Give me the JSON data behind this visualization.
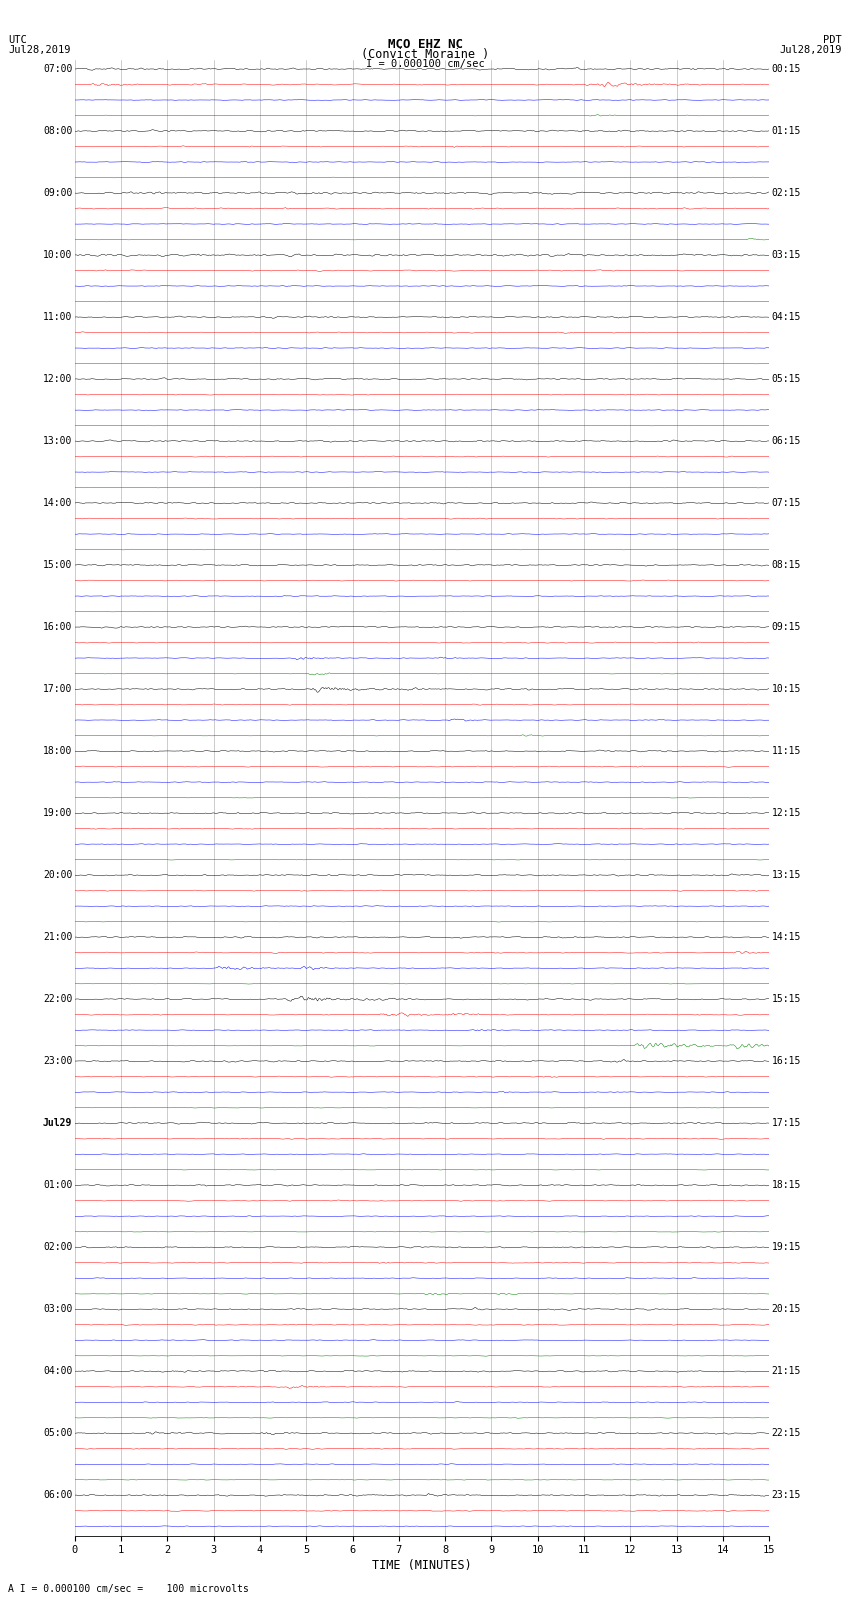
{
  "title_line1": "MCO EHZ NC",
  "title_line2": "(Convict Moraine )",
  "scale_text": "I = 0.000100 cm/sec",
  "label_left_line1": "UTC",
  "label_left_line2": "Jul28,2019",
  "label_right_line1": "PDT",
  "label_right_line2": "Jul28,2019",
  "xlabel": "TIME (MINUTES)",
  "footer": "A I = 0.000100 cm/sec =    100 microvolts",
  "trace_color_cycle": [
    "black",
    "red",
    "blue",
    "green"
  ],
  "utc_labels": [
    "07:00",
    "",
    "",
    "",
    "08:00",
    "",
    "",
    "",
    "09:00",
    "",
    "",
    "",
    "10:00",
    "",
    "",
    "",
    "11:00",
    "",
    "",
    "",
    "12:00",
    "",
    "",
    "",
    "13:00",
    "",
    "",
    "",
    "14:00",
    "",
    "",
    "",
    "15:00",
    "",
    "",
    "",
    "16:00",
    "",
    "",
    "",
    "17:00",
    "",
    "",
    "",
    "18:00",
    "",
    "",
    "",
    "19:00",
    "",
    "",
    "",
    "20:00",
    "",
    "",
    "",
    "21:00",
    "",
    "",
    "",
    "22:00",
    "",
    "",
    "",
    "23:00",
    "",
    "",
    "",
    "Jul29",
    "",
    "",
    "",
    "01:00",
    "",
    "",
    "",
    "02:00",
    "",
    "",
    "",
    "03:00",
    "",
    "",
    "",
    "04:00",
    "",
    "",
    "",
    "05:00",
    "",
    "",
    "",
    "06:00",
    "",
    ""
  ],
  "pdt_labels": [
    "00:15",
    "",
    "",
    "",
    "01:15",
    "",
    "",
    "",
    "02:15",
    "",
    "",
    "",
    "03:15",
    "",
    "",
    "",
    "04:15",
    "",
    "",
    "",
    "05:15",
    "",
    "",
    "",
    "06:15",
    "",
    "",
    "",
    "07:15",
    "",
    "",
    "",
    "08:15",
    "",
    "",
    "",
    "09:15",
    "",
    "",
    "",
    "10:15",
    "",
    "",
    "",
    "11:15",
    "",
    "",
    "",
    "12:15",
    "",
    "",
    "",
    "13:15",
    "",
    "",
    "",
    "14:15",
    "",
    "",
    "",
    "15:15",
    "",
    "",
    "",
    "16:15",
    "",
    "",
    "",
    "17:15",
    "",
    "",
    "",
    "18:15",
    "",
    "",
    "",
    "19:15",
    "",
    "",
    "",
    "20:15",
    "",
    "",
    "",
    "21:15",
    "",
    "",
    "",
    "22:15",
    "",
    "",
    "",
    "23:15",
    "",
    ""
  ],
  "x_ticks": [
    0,
    1,
    2,
    3,
    4,
    5,
    6,
    7,
    8,
    9,
    10,
    11,
    12,
    13,
    14,
    15
  ],
  "xlim": [
    0,
    15
  ],
  "n_rows": 95,
  "n_minutes": 15,
  "fig_width": 8.5,
  "fig_height": 16.13,
  "bg_color": "white",
  "noise_base": 0.018,
  "noise_vary": [
    0.025,
    0.015,
    0.01,
    0.008,
    0.022,
    0.012,
    0.01,
    0.008,
    0.028,
    0.015,
    0.01,
    0.008,
    0.03,
    0.015,
    0.01,
    0.008,
    0.02,
    0.012,
    0.01,
    0.008,
    0.02,
    0.012,
    0.01,
    0.008,
    0.02,
    0.012,
    0.01,
    0.008,
    0.02,
    0.012,
    0.01,
    0.008,
    0.02,
    0.012,
    0.01,
    0.008,
    0.02,
    0.012,
    0.01,
    0.008,
    0.02,
    0.012,
    0.01,
    0.008,
    0.02,
    0.012,
    0.01,
    0.008,
    0.02,
    0.012,
    0.01,
    0.008,
    0.02,
    0.012,
    0.01,
    0.008,
    0.02,
    0.012,
    0.01,
    0.008,
    0.02,
    0.012,
    0.01,
    0.008,
    0.02,
    0.012,
    0.01,
    0.008,
    0.02,
    0.012,
    0.01,
    0.008,
    0.02,
    0.012,
    0.01,
    0.008,
    0.02,
    0.012,
    0.01,
    0.008,
    0.02,
    0.012,
    0.01,
    0.008,
    0.02,
    0.012,
    0.01,
    0.008,
    0.02,
    0.012,
    0.01,
    0.008,
    0.02,
    0.012,
    0.01
  ],
  "events": [
    {
      "row": 0,
      "t": 0.5,
      "amp": 0.15,
      "dur": 0.3,
      "color_hint": "black"
    },
    {
      "row": 1,
      "t": 0.3,
      "amp": 0.25,
      "dur": 0.8,
      "color_hint": "red"
    },
    {
      "row": 1,
      "t": 2.5,
      "amp": 0.15,
      "dur": 0.4,
      "color_hint": "red"
    },
    {
      "row": 1,
      "t": 10.8,
      "amp": 0.35,
      "dur": 1.5,
      "color_hint": "red"
    },
    {
      "row": 2,
      "t": 10.8,
      "amp": 0.12,
      "dur": 0.3,
      "color_hint": "blue"
    },
    {
      "row": 3,
      "t": 11.0,
      "amp": 0.22,
      "dur": 0.5,
      "color_hint": "green"
    },
    {
      "row": 3,
      "t": 13.0,
      "amp": 0.1,
      "dur": 0.4,
      "color_hint": "green"
    },
    {
      "row": 4,
      "t": 14.5,
      "amp": 0.1,
      "dur": 0.3,
      "color_hint": "black"
    },
    {
      "row": 5,
      "t": 3.5,
      "amp": 0.12,
      "dur": 0.4,
      "color_hint": "red"
    },
    {
      "row": 5,
      "t": 8.0,
      "amp": 0.15,
      "dur": 0.5,
      "color_hint": "red"
    },
    {
      "row": 6,
      "t": 3.5,
      "amp": 0.1,
      "dur": 0.3,
      "color_hint": "blue"
    },
    {
      "row": 8,
      "t": 1.5,
      "amp": 0.18,
      "dur": 0.5,
      "color_hint": "black"
    },
    {
      "row": 8,
      "t": 4.8,
      "amp": 0.22,
      "dur": 0.5,
      "color_hint": "black"
    },
    {
      "row": 9,
      "t": 4.5,
      "amp": 0.1,
      "dur": 0.3,
      "color_hint": "red"
    },
    {
      "row": 10,
      "t": 4.3,
      "amp": 0.12,
      "dur": 0.3,
      "color_hint": "blue"
    },
    {
      "row": 11,
      "t": 14.5,
      "amp": 0.18,
      "dur": 0.4,
      "color_hint": "green"
    },
    {
      "row": 12,
      "t": 2.5,
      "amp": 0.15,
      "dur": 0.4,
      "color_hint": "black"
    },
    {
      "row": 13,
      "t": 4.0,
      "amp": 0.1,
      "dur": 0.3,
      "color_hint": "red"
    },
    {
      "row": 14,
      "t": 4.5,
      "amp": 0.1,
      "dur": 0.2,
      "color_hint": "blue"
    },
    {
      "row": 16,
      "t": 5.0,
      "amp": 0.15,
      "dur": 0.5,
      "color_hint": "black"
    },
    {
      "row": 16,
      "t": 9.2,
      "amp": 0.12,
      "dur": 0.3,
      "color_hint": "black"
    },
    {
      "row": 17,
      "t": 10.5,
      "amp": 0.1,
      "dur": 0.4,
      "color_hint": "red"
    },
    {
      "row": 18,
      "t": 4.0,
      "amp": 0.1,
      "dur": 0.3,
      "color_hint": "blue"
    },
    {
      "row": 20,
      "t": 1.8,
      "amp": 0.1,
      "dur": 0.4,
      "color_hint": "black"
    },
    {
      "row": 20,
      "t": 3.5,
      "amp": 0.12,
      "dur": 0.3,
      "color_hint": "black"
    },
    {
      "row": 24,
      "t": 1.5,
      "amp": 0.12,
      "dur": 0.4,
      "color_hint": "black"
    },
    {
      "row": 24,
      "t": 3.0,
      "amp": 0.1,
      "dur": 0.3,
      "color_hint": "black"
    },
    {
      "row": 24,
      "t": 12.7,
      "amp": 0.1,
      "dur": 0.3,
      "color_hint": "black"
    },
    {
      "row": 25,
      "t": 13.5,
      "amp": 0.1,
      "dur": 0.3,
      "color_hint": "red"
    },
    {
      "row": 28,
      "t": 1.5,
      "amp": 0.12,
      "dur": 0.4,
      "color_hint": "black"
    },
    {
      "row": 28,
      "t": 2.5,
      "amp": 0.1,
      "dur": 0.3,
      "color_hint": "black"
    },
    {
      "row": 29,
      "t": 2.0,
      "amp": 0.1,
      "dur": 0.3,
      "color_hint": "red"
    },
    {
      "row": 32,
      "t": 1.5,
      "amp": 0.12,
      "dur": 0.4,
      "color_hint": "black"
    },
    {
      "row": 32,
      "t": 4.0,
      "amp": 0.1,
      "dur": 0.3,
      "color_hint": "black"
    },
    {
      "row": 34,
      "t": 4.3,
      "amp": 0.1,
      "dur": 0.3,
      "color_hint": "blue"
    },
    {
      "row": 36,
      "t": 0.5,
      "amp": 0.15,
      "dur": 0.4,
      "color_hint": "black"
    },
    {
      "row": 37,
      "t": 13.2,
      "amp": 0.1,
      "dur": 0.3,
      "color_hint": "red"
    },
    {
      "row": 38,
      "t": 4.7,
      "amp": 0.35,
      "dur": 0.6,
      "color_hint": "blue"
    },
    {
      "row": 38,
      "t": 7.8,
      "amp": 0.2,
      "dur": 0.4,
      "color_hint": "blue"
    },
    {
      "row": 39,
      "t": 5.0,
      "amp": 0.2,
      "dur": 0.5,
      "color_hint": "green"
    },
    {
      "row": 40,
      "t": 5.0,
      "amp": 0.55,
      "dur": 1.0,
      "color_hint": "black"
    },
    {
      "row": 40,
      "t": 7.0,
      "amp": 0.25,
      "dur": 0.5,
      "color_hint": "black"
    },
    {
      "row": 41,
      "t": 8.5,
      "amp": 0.15,
      "dur": 0.4,
      "color_hint": "red"
    },
    {
      "row": 42,
      "t": 8.0,
      "amp": 0.25,
      "dur": 0.5,
      "color_hint": "blue"
    },
    {
      "row": 43,
      "t": 9.5,
      "amp": 0.2,
      "dur": 0.5,
      "color_hint": "green"
    },
    {
      "row": 44,
      "t": 11.5,
      "amp": 0.12,
      "dur": 0.3,
      "color_hint": "black"
    },
    {
      "row": 45,
      "t": 12.0,
      "amp": 0.1,
      "dur": 0.3,
      "color_hint": "red"
    },
    {
      "row": 48,
      "t": 14.0,
      "amp": 0.1,
      "dur": 0.3,
      "color_hint": "black"
    },
    {
      "row": 52,
      "t": 9.5,
      "amp": 0.1,
      "dur": 0.3,
      "color_hint": "black"
    },
    {
      "row": 53,
      "t": 14.5,
      "amp": 0.12,
      "dur": 0.3,
      "color_hint": "red"
    },
    {
      "row": 56,
      "t": 3.5,
      "amp": 0.1,
      "dur": 0.3,
      "color_hint": "black"
    },
    {
      "row": 57,
      "t": 14.2,
      "amp": 0.25,
      "dur": 0.5,
      "color_hint": "red"
    },
    {
      "row": 58,
      "t": 3.0,
      "amp": 0.45,
      "dur": 0.8,
      "color_hint": "blue"
    },
    {
      "row": 58,
      "t": 4.8,
      "amp": 0.35,
      "dur": 0.6,
      "color_hint": "blue"
    },
    {
      "row": 60,
      "t": 4.5,
      "amp": 0.55,
      "dur": 1.2,
      "color_hint": "black"
    },
    {
      "row": 60,
      "t": 6.5,
      "amp": 0.3,
      "dur": 0.6,
      "color_hint": "black"
    },
    {
      "row": 61,
      "t": 6.5,
      "amp": 0.45,
      "dur": 0.8,
      "color_hint": "red"
    },
    {
      "row": 61,
      "t": 8.0,
      "amp": 0.35,
      "dur": 0.6,
      "color_hint": "red"
    },
    {
      "row": 62,
      "t": 8.5,
      "amp": 0.2,
      "dur": 0.5,
      "color_hint": "blue"
    },
    {
      "row": 63,
      "t": 12.0,
      "amp": 0.55,
      "dur": 1.2,
      "color_hint": "green"
    },
    {
      "row": 63,
      "t": 14.0,
      "amp": 0.45,
      "dur": 1.0,
      "color_hint": "green"
    },
    {
      "row": 64,
      "t": 11.5,
      "amp": 0.25,
      "dur": 0.5,
      "color_hint": "black"
    },
    {
      "row": 65,
      "t": 10.0,
      "amp": 0.15,
      "dur": 0.4,
      "color_hint": "red"
    },
    {
      "row": 66,
      "t": 9.0,
      "amp": 0.2,
      "dur": 0.4,
      "color_hint": "blue"
    },
    {
      "row": 68,
      "t": 7.5,
      "amp": 0.15,
      "dur": 0.4,
      "color_hint": "black"
    },
    {
      "row": 69,
      "t": 9.0,
      "amp": 0.1,
      "dur": 0.3,
      "color_hint": "red"
    },
    {
      "row": 72,
      "t": 2.5,
      "amp": 0.1,
      "dur": 0.3,
      "color_hint": "black"
    },
    {
      "row": 73,
      "t": 13.5,
      "amp": 0.12,
      "dur": 0.3,
      "color_hint": "red"
    },
    {
      "row": 76,
      "t": 0.5,
      "amp": 0.18,
      "dur": 0.5,
      "color_hint": "black"
    },
    {
      "row": 77,
      "t": 6.5,
      "amp": 0.15,
      "dur": 0.4,
      "color_hint": "red"
    },
    {
      "row": 79,
      "t": 7.5,
      "amp": 0.25,
      "dur": 0.5,
      "color_hint": "green"
    },
    {
      "row": 79,
      "t": 9.0,
      "amp": 0.2,
      "dur": 0.5,
      "color_hint": "green"
    },
    {
      "row": 80,
      "t": 8.5,
      "amp": 0.15,
      "dur": 0.4,
      "color_hint": "black"
    },
    {
      "row": 84,
      "t": 2.0,
      "amp": 0.22,
      "dur": 0.5,
      "color_hint": "green"
    },
    {
      "row": 84,
      "t": 4.0,
      "amp": 0.18,
      "dur": 0.5,
      "color_hint": "green"
    },
    {
      "row": 85,
      "t": 4.5,
      "amp": 0.3,
      "dur": 0.5,
      "color_hint": "black"
    },
    {
      "row": 88,
      "t": 1.5,
      "amp": 0.35,
      "dur": 0.7,
      "color_hint": "black"
    },
    {
      "row": 88,
      "t": 4.0,
      "amp": 0.25,
      "dur": 0.5,
      "color_hint": "black"
    },
    {
      "row": 92,
      "t": 7.5,
      "amp": 0.25,
      "dur": 0.5,
      "color_hint": "black"
    },
    {
      "row": 93,
      "t": 9.0,
      "amp": 0.1,
      "dur": 0.3,
      "color_hint": "red"
    }
  ]
}
